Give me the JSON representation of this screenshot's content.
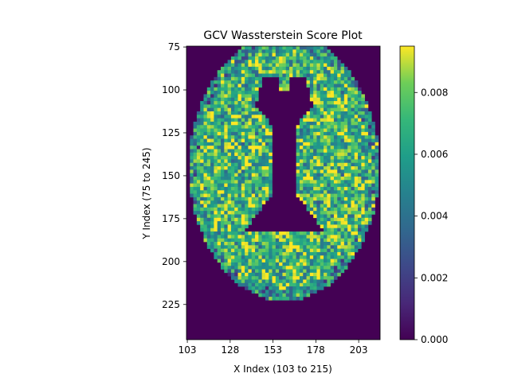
{
  "chart_data": {
    "type": "heatmap",
    "title": "GCV Wassterstein Score Plot",
    "xlabel": "X Index (103 to 215)",
    "ylabel": "Y Index (75 to 245)",
    "x_range": [
      103,
      215
    ],
    "y_range": [
      75,
      245
    ],
    "y_inverted": true,
    "x_ticks": [
      "103",
      "128",
      "153",
      "178",
      "203"
    ],
    "y_ticks": [
      "75",
      "100",
      "125",
      "150",
      "175",
      "200",
      "225"
    ],
    "colorbar": {
      "colormap": "viridis",
      "range": [
        0.0,
        0.0095
      ],
      "ticks": [
        "0.000",
        "0.002",
        "0.004",
        "0.006",
        "0.008"
      ],
      "tick_values": [
        0.0,
        0.002,
        0.004,
        0.006,
        0.008
      ]
    },
    "field": {
      "description_values": "Brain axial slice; background and ventricles at 0.000, brain tissue mostly 0.004–0.009",
      "brain_center": [
        159,
        148
      ],
      "brain_radii": [
        56,
        81
      ],
      "ventricle_center": [
        159,
        150
      ],
      "typical_tissue_value": 0.007,
      "min": 0.0,
      "max": 0.0095
    },
    "grid": false,
    "legend": "colorbar-right"
  }
}
